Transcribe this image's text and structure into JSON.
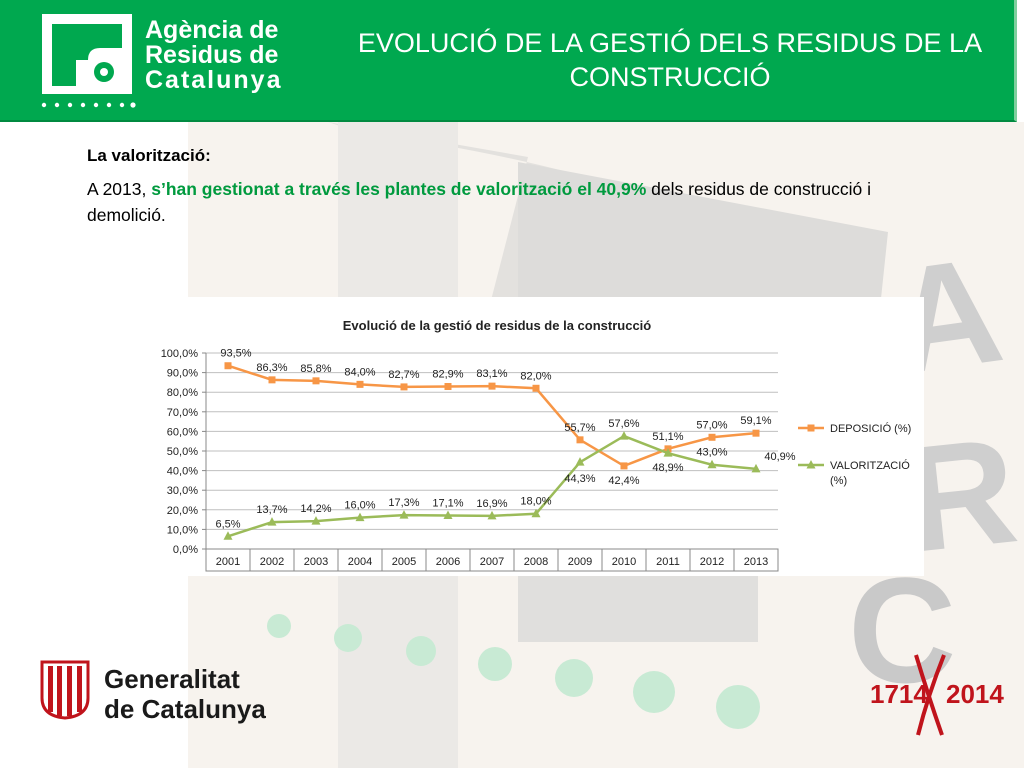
{
  "header": {
    "agency_name": [
      "Agència de",
      "Residus de",
      "Catalunya"
    ],
    "title": "EVOLUCIÓ DE LA GESTIÓ DELS RESIDUS DE LA CONSTRUCCIÓ",
    "brand_color": "#00a84f"
  },
  "intro": {
    "label": "La valorització:",
    "text_before": "A  2013, ",
    "text_highlight": "s’han gestionat a través les plantes de valorització el 40,9%",
    "text_after": " dels residus de construcció i demolició."
  },
  "chart_data": {
    "type": "line",
    "title": "Evolució de la gestió de residus de la construcció",
    "categories": [
      "2001",
      "2002",
      "2003",
      "2004",
      "2005",
      "2006",
      "2007",
      "2008",
      "2009",
      "2010",
      "2011",
      "2012",
      "2013"
    ],
    "yticks": [
      "0,0%",
      "10,0%",
      "20,0%",
      "30,0%",
      "40,0%",
      "50,0%",
      "60,0%",
      "70,0%",
      "80,0%",
      "90,0%",
      "100,0%"
    ],
    "ylim": [
      0,
      100
    ],
    "grid": true,
    "legend_position": "right",
    "series": [
      {
        "name": "DEPOSICIÓ (%)",
        "legend_lines": [
          "DEPOSICIÓ (%)"
        ],
        "color": "#f79646",
        "marker": "square",
        "values": [
          93.5,
          86.3,
          85.8,
          84.0,
          82.7,
          82.9,
          83.1,
          82.0,
          55.7,
          42.4,
          51.1,
          57.0,
          59.1
        ],
        "labels": [
          "93,5%",
          "86,3%",
          "85,8%",
          "84,0%",
          "82,7%",
          "82,9%",
          "83,1%",
          "82,0%",
          "55,7%",
          "42,4%",
          "51,1%",
          "57,0%",
          "59,1%"
        ]
      },
      {
        "name": "VALORITZACIÓ (%)",
        "legend_lines": [
          "VALORITZACIÓ",
          "(%)"
        ],
        "color": "#9bbb59",
        "marker": "triangle",
        "values": [
          6.5,
          13.7,
          14.2,
          16.0,
          17.3,
          17.1,
          16.9,
          18.0,
          44.3,
          57.6,
          48.9,
          43.0,
          40.9
        ],
        "labels": [
          "6,5%",
          "13,7%",
          "14,2%",
          "16,0%",
          "17,3%",
          "17,1%",
          "16,9%",
          "18,0%",
          "44,3%",
          "57,6%",
          "48,9%",
          "43,0%",
          "40,9%"
        ]
      }
    ]
  },
  "footer": {
    "generalitat": [
      "Generalitat",
      "de Catalunya"
    ],
    "anniversary_left": "1714",
    "anniversary_right": "2014"
  }
}
